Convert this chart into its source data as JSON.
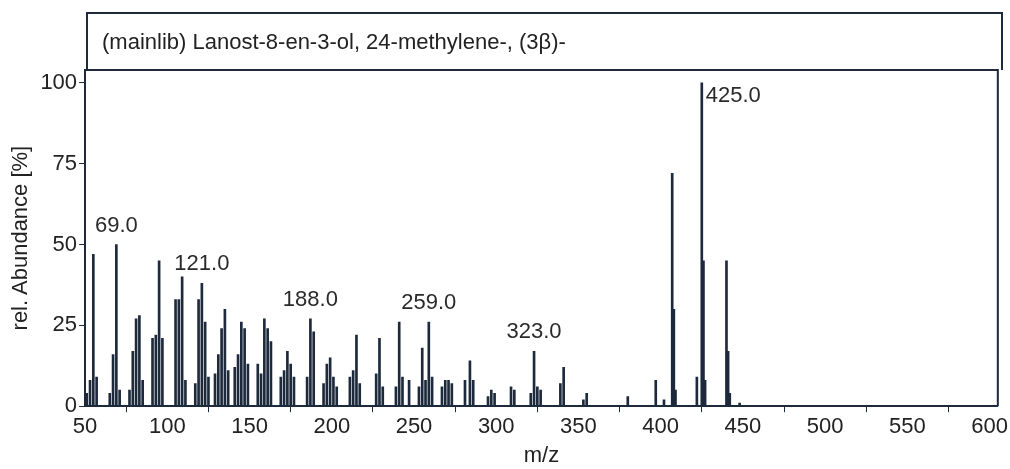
{
  "chart_data": {
    "type": "bar",
    "title": "(mainlib) Lanost-8-en-3-ol, 24-methylene-, (3β)-",
    "xlabel": "m/z",
    "ylabel": "rel. Abundance [%]",
    "color": "#1c2a3c",
    "x": [
      51,
      53,
      55,
      57,
      65,
      67,
      69,
      71,
      77,
      79,
      81,
      83,
      85,
      91,
      93,
      95,
      97,
      105,
      107,
      109,
      111,
      117,
      119,
      121,
      123,
      125,
      129,
      131,
      133,
      135,
      137,
      141,
      143,
      145,
      147,
      149,
      155,
      157,
      159,
      161,
      163,
      169,
      171,
      173,
      175,
      177,
      185,
      187,
      189,
      195,
      197,
      199,
      201,
      203,
      211,
      213,
      215,
      217,
      227,
      229,
      231,
      239,
      241,
      243,
      247,
      253,
      255,
      257,
      259,
      261,
      267,
      269,
      271,
      273,
      281,
      284,
      286,
      295,
      297,
      299,
      309,
      311,
      321,
      323,
      325,
      327,
      339,
      341,
      353,
      355,
      380,
      397,
      402,
      407,
      408,
      409,
      422,
      423,
      425,
      426,
      427,
      440,
      441,
      442,
      448
    ],
    "values": [
      4,
      8,
      47,
      9,
      4,
      16,
      50,
      5,
      5,
      17,
      27,
      28,
      8,
      21,
      22,
      45,
      21,
      33,
      33,
      40,
      8,
      7,
      33,
      38,
      26,
      9,
      10,
      16,
      24,
      30,
      11,
      12,
      16,
      26,
      24,
      13,
      13,
      10,
      27,
      24,
      20,
      9,
      11,
      17,
      13,
      9,
      9,
      27,
      23,
      7,
      13,
      15,
      9,
      6,
      9,
      11,
      22,
      7,
      10,
      21,
      6,
      6,
      26,
      9,
      8,
      6,
      18,
      8,
      26,
      9,
      6,
      8,
      8,
      7,
      8,
      14,
      8,
      3,
      5,
      4,
      6,
      5,
      4,
      17,
      6,
      5,
      7,
      12,
      2,
      4,
      3,
      8,
      2,
      72,
      30,
      5,
      9,
      null,
      100,
      45,
      8,
      45,
      17,
      4,
      1
    ],
    "xlim": [
      50,
      605
    ],
    "ylim": [
      0,
      104
    ],
    "xticks": [
      50,
      100,
      150,
      200,
      250,
      300,
      350,
      400,
      450,
      500,
      550,
      600
    ],
    "yticks": [
      0,
      25,
      50,
      75,
      100
    ],
    "annotations": [
      {
        "text": "69.0",
        "x": 69,
        "y": 50
      },
      {
        "text": "121.0",
        "x": 121,
        "y": 38
      },
      {
        "text": "188.0",
        "x": 187,
        "y": 27
      },
      {
        "text": "259.0",
        "x": 259,
        "y": 26
      },
      {
        "text": "323.0",
        "x": 323,
        "y": 17
      },
      {
        "text": "425.0",
        "x": 425,
        "y": 100
      }
    ]
  }
}
